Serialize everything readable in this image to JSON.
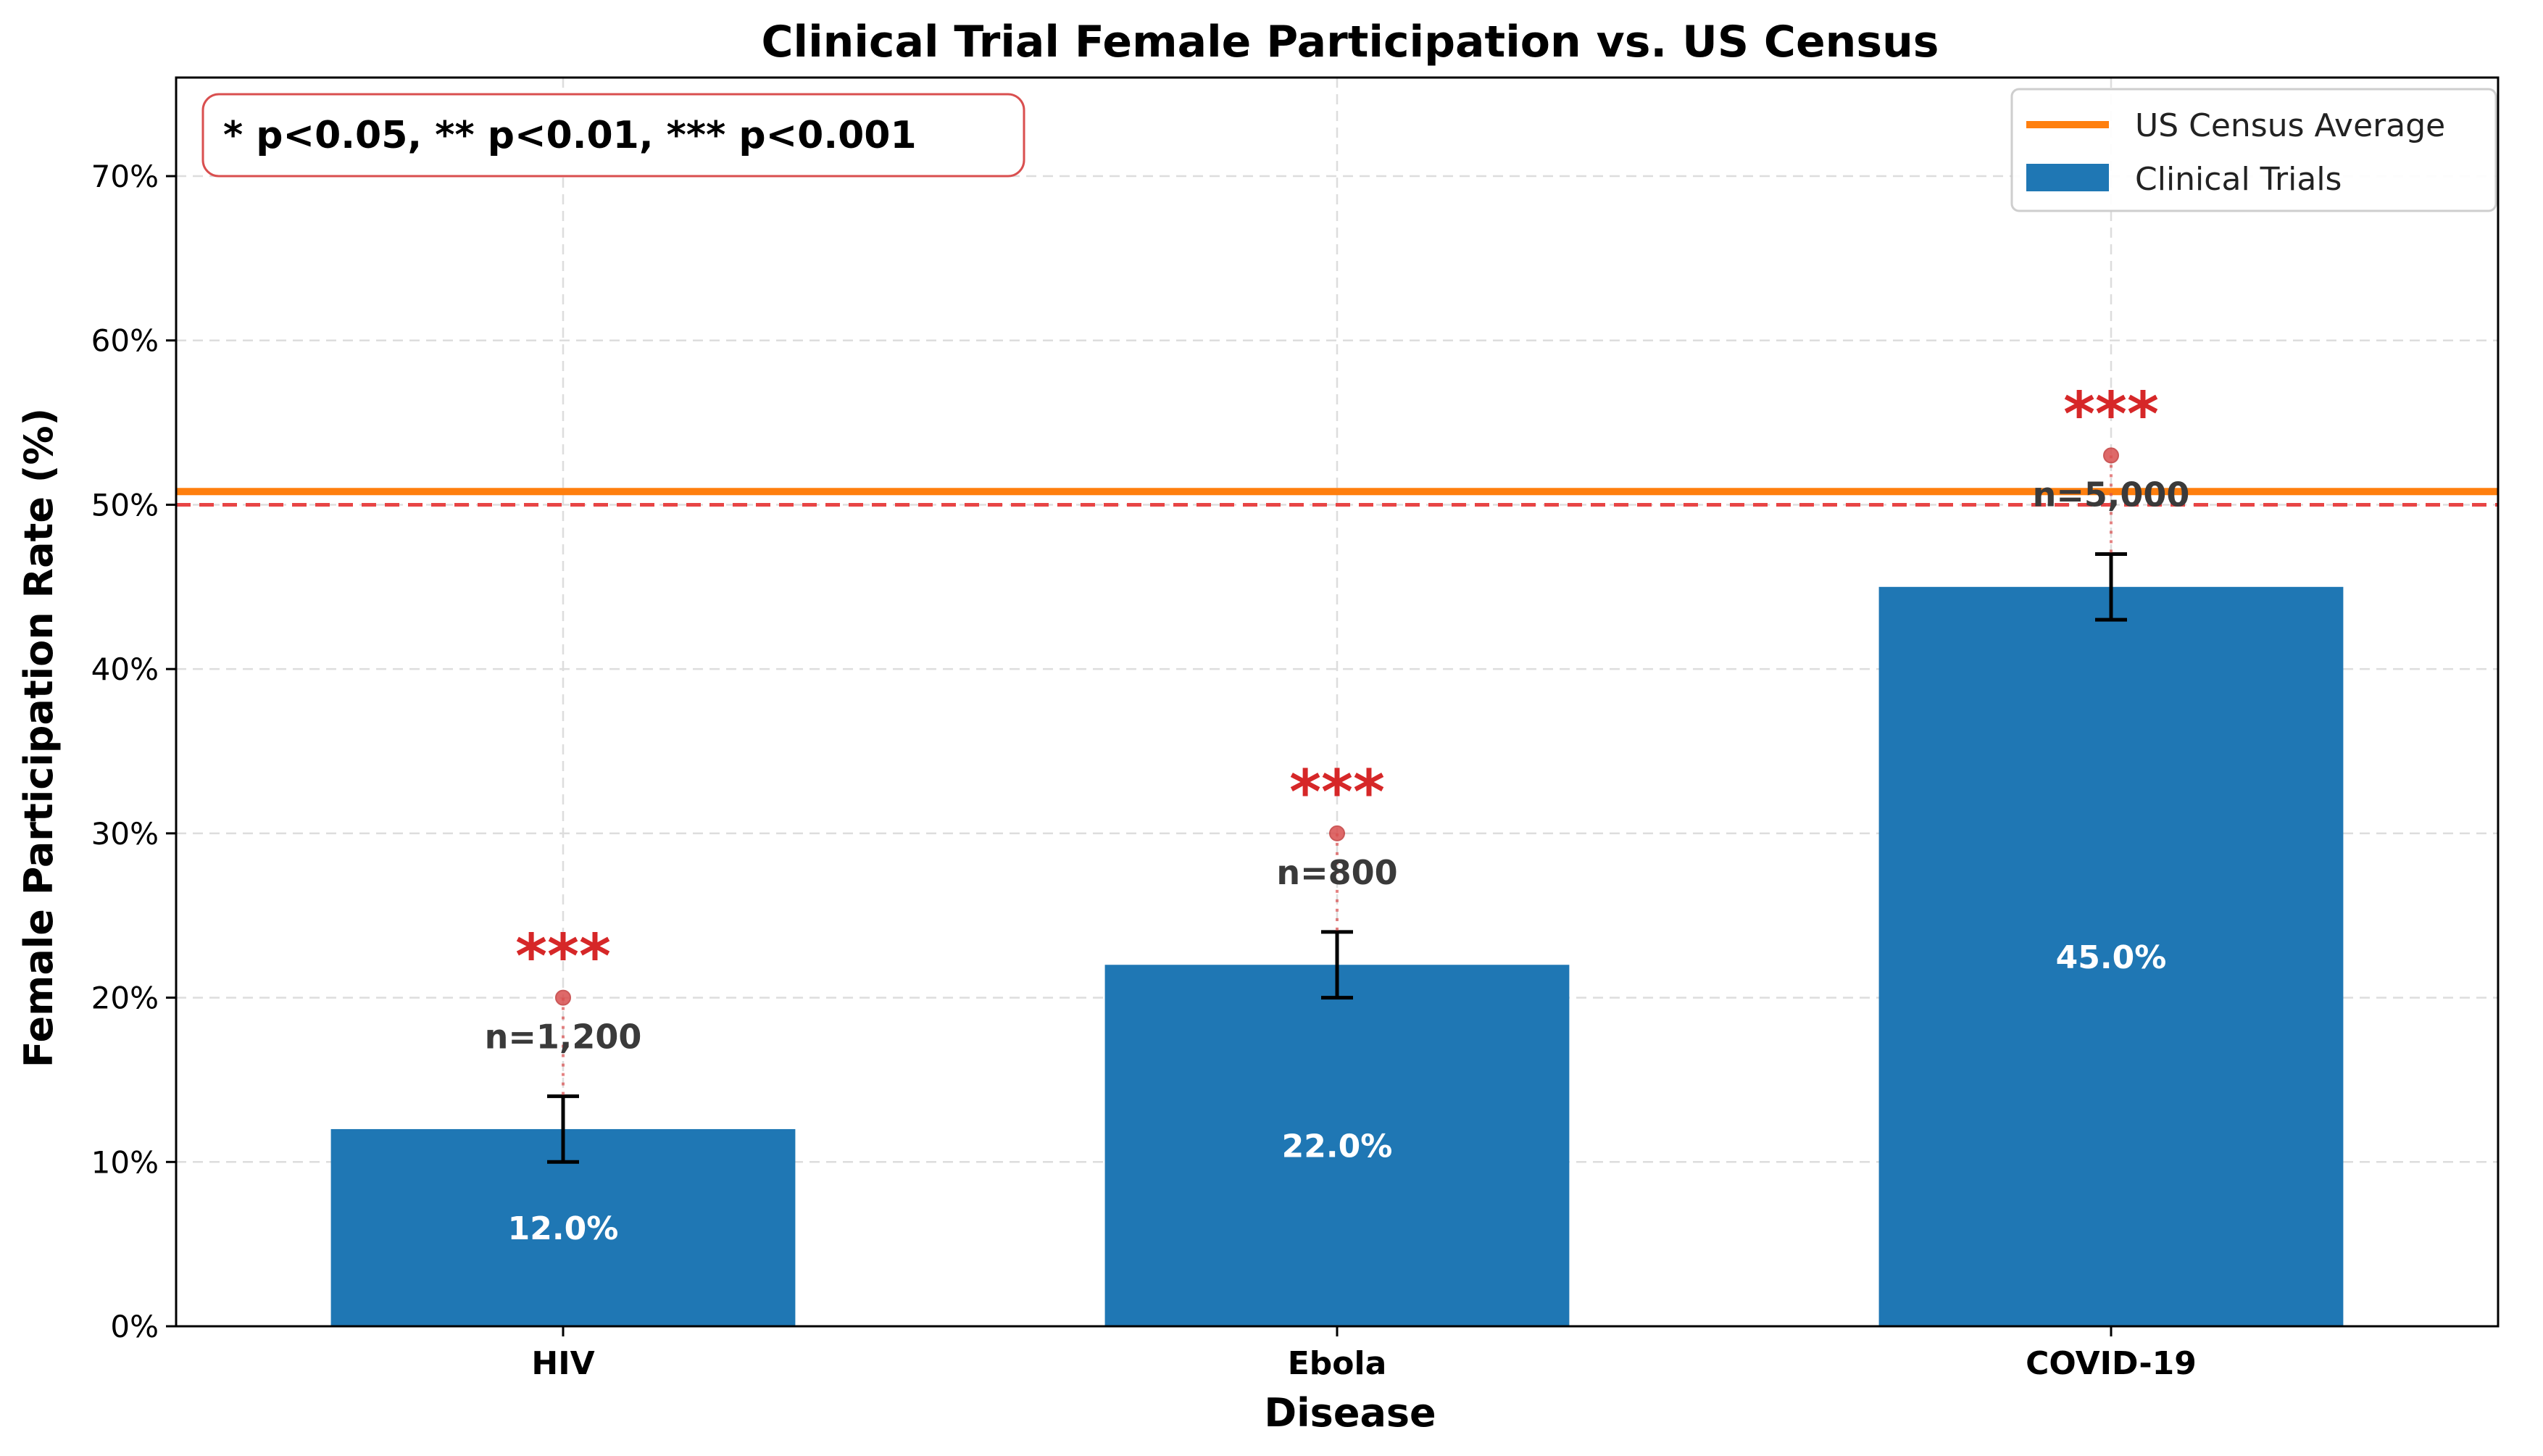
{
  "chart_data": {
    "type": "bar",
    "title": "Clinical Trial Female Participation vs. US Census",
    "xlabel": "Disease",
    "ylabel": "Female Participation Rate (%)",
    "categories": [
      "HIV",
      "Ebola",
      "COVID-19"
    ],
    "values": [
      12.0,
      22.0,
      45.0
    ],
    "value_labels": [
      "12.0%",
      "22.0%",
      "45.0%"
    ],
    "error": [
      2,
      2,
      2
    ],
    "sample_labels": [
      "n=1,200",
      "n=800",
      "n=5,000"
    ],
    "significance": [
      "***",
      "***",
      "***"
    ],
    "significance_markers": [
      20,
      30,
      53
    ],
    "ylim": [
      0,
      76
    ],
    "yticks": [
      0,
      10,
      20,
      30,
      40,
      50,
      60,
      70
    ],
    "ytick_labels": [
      "0%",
      "10%",
      "20%",
      "30%",
      "40%",
      "50%",
      "60%",
      "70%"
    ],
    "census_average": 50.8,
    "reference_line": 50,
    "grid": true,
    "legend": {
      "placement": "top-right",
      "entries": [
        "US Census Average",
        "Clinical Trials"
      ]
    },
    "note": "* p<0.05, ** p<0.01, *** p<0.001",
    "colors": {
      "bar": "#1f77b4",
      "census_line": "#ff7f0e",
      "reference_line": "#e84545",
      "significance": "#d62728",
      "marker": "#d94f4f"
    }
  }
}
